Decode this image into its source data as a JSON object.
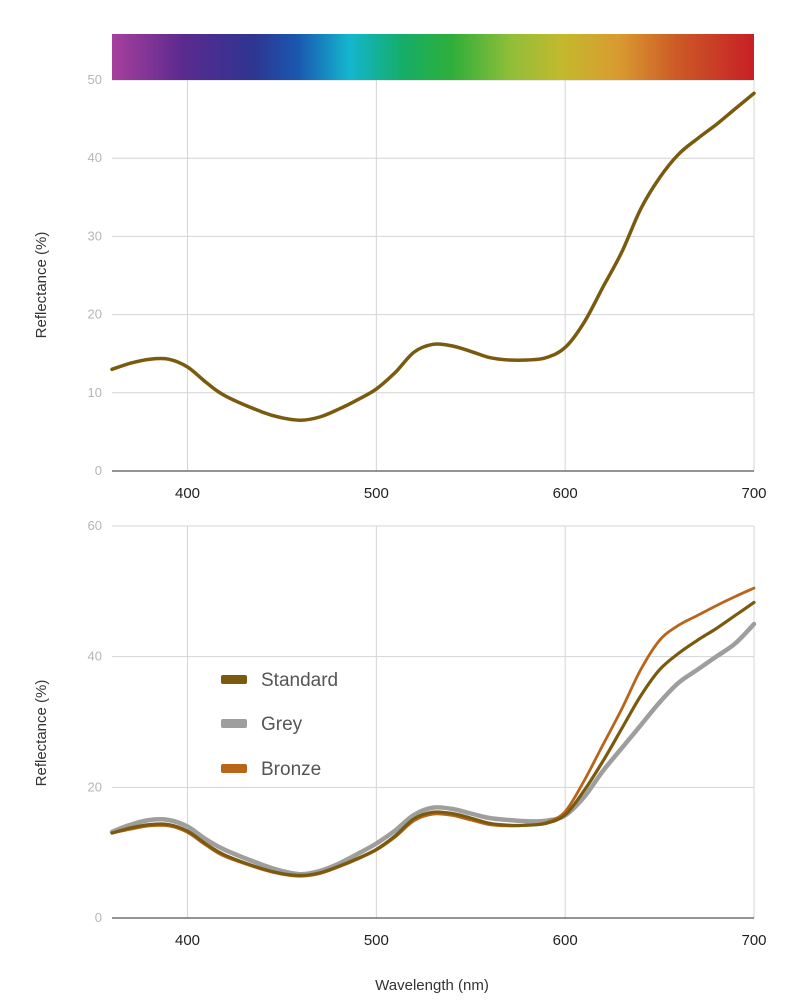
{
  "palette": {
    "grid": "#d4d4d4",
    "axis": "#555555",
    "standard": "#7a5a0f",
    "grey": "#9e9e9e",
    "bronze": "#b8651a"
  },
  "chart_data": [
    {
      "type": "line",
      "title": "",
      "xlabel": "",
      "ylabel": "Reflectance (%)",
      "xlim": [
        360,
        700
      ],
      "ylim": [
        0,
        50
      ],
      "xticks": [
        "400",
        "500",
        "600",
        "700"
      ],
      "yticks": [
        "0",
        "10",
        "20",
        "30",
        "40",
        "50"
      ],
      "xtick_values": [
        400,
        500,
        600,
        700
      ],
      "ytick_values": [
        0,
        10,
        20,
        30,
        40,
        50
      ],
      "grid": true,
      "spectrum_bar": true,
      "series": [
        {
          "name": "",
          "color": "#7a5a0f",
          "x": [
            360,
            370,
            380,
            390,
            400,
            410,
            420,
            440,
            450,
            460,
            470,
            480,
            490,
            500,
            510,
            520,
            530,
            540,
            550,
            560,
            570,
            580,
            590,
            600,
            610,
            620,
            630,
            640,
            650,
            660,
            670,
            680,
            690,
            700
          ],
          "y": [
            13,
            13.8,
            14.3,
            14.3,
            13.3,
            11.3,
            9.6,
            7.5,
            6.8,
            6.5,
            6.9,
            7.9,
            9.1,
            10.5,
            12.6,
            15.2,
            16.2,
            16.0,
            15.3,
            14.5,
            14.2,
            14.2,
            14.5,
            15.8,
            19.0,
            23.5,
            28.0,
            33.5,
            37.5,
            40.5,
            42.5,
            44.3,
            46.3,
            48.3
          ]
        }
      ]
    },
    {
      "type": "line",
      "title": "",
      "xlabel": "Wavelength (nm)",
      "ylabel": "Reflectance (%)",
      "xlim": [
        360,
        700
      ],
      "ylim": [
        0,
        60
      ],
      "xticks": [
        "400",
        "500",
        "600",
        "700"
      ],
      "yticks": [
        "0",
        "20",
        "40",
        "60"
      ],
      "xtick_values": [
        400,
        500,
        600,
        700
      ],
      "ytick_values": [
        0,
        20,
        40,
        60
      ],
      "grid": true,
      "legend": "left-center",
      "series": [
        {
          "name": "Standard",
          "color": "#7a5a0f",
          "x": [
            360,
            370,
            380,
            390,
            400,
            410,
            420,
            440,
            450,
            460,
            470,
            480,
            490,
            500,
            510,
            520,
            530,
            540,
            550,
            560,
            570,
            580,
            590,
            600,
            610,
            620,
            630,
            640,
            650,
            660,
            670,
            680,
            690,
            700
          ],
          "y": [
            13,
            13.8,
            14.3,
            14.3,
            13.3,
            11.3,
            9.6,
            7.5,
            6.8,
            6.5,
            6.9,
            7.9,
            9.1,
            10.5,
            12.6,
            15.2,
            16.2,
            16.0,
            15.3,
            14.5,
            14.2,
            14.2,
            14.5,
            15.8,
            19.5,
            24.0,
            29.0,
            34.0,
            38.0,
            40.5,
            42.5,
            44.3,
            46.3,
            48.3
          ]
        },
        {
          "name": "Grey",
          "color": "#9e9e9e",
          "x": [
            360,
            370,
            380,
            390,
            400,
            410,
            420,
            440,
            450,
            460,
            470,
            480,
            490,
            500,
            510,
            520,
            530,
            540,
            550,
            560,
            570,
            580,
            590,
            600,
            610,
            620,
            630,
            640,
            650,
            660,
            670,
            680,
            690,
            700
          ],
          "y": [
            13.2,
            14.3,
            15.0,
            15.0,
            14.0,
            12.0,
            10.4,
            8.1,
            7.2,
            6.7,
            7.2,
            8.3,
            9.8,
            11.4,
            13.4,
            15.8,
            16.9,
            16.7,
            16.0,
            15.3,
            15.0,
            14.8,
            14.9,
            15.7,
            18.5,
            22.5,
            26.0,
            29.5,
            33.0,
            36.0,
            38.0,
            40.0,
            42.0,
            45.0
          ]
        },
        {
          "name": "Bronze",
          "color": "#b8651a",
          "x": [
            360,
            370,
            380,
            390,
            400,
            410,
            420,
            440,
            450,
            460,
            470,
            480,
            490,
            500,
            510,
            520,
            530,
            540,
            550,
            560,
            570,
            580,
            590,
            600,
            610,
            620,
            630,
            640,
            650,
            660,
            670,
            680,
            690,
            700
          ],
          "y": [
            13,
            13.6,
            14.1,
            14.1,
            13.1,
            11.1,
            9.4,
            7.4,
            6.7,
            6.4,
            6.8,
            7.8,
            9.0,
            10.4,
            12.4,
            14.9,
            15.9,
            15.7,
            15.0,
            14.3,
            14.1,
            14.2,
            14.6,
            16.3,
            21.0,
            26.5,
            32.0,
            38.0,
            42.5,
            44.8,
            46.3,
            47.8,
            49.2,
            50.5
          ]
        }
      ]
    }
  ]
}
